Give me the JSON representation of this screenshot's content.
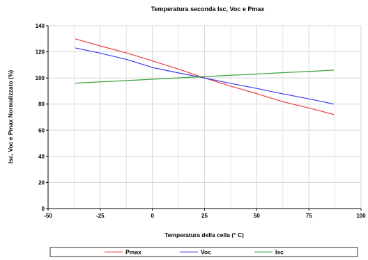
{
  "chart_data": {
    "type": "line",
    "title": "Temperatura seconda Isc, Voc e Pmax",
    "xlabel": "Temperatura della cella (° C)",
    "ylabel": "Isc, Voc e Pmax Normalizzato (%)",
    "xlim": [
      -50,
      100
    ],
    "ylim": [
      0,
      140
    ],
    "xticks": [
      -50,
      -25,
      0,
      25,
      50,
      75,
      100
    ],
    "yticks": [
      0,
      20,
      40,
      60,
      80,
      100,
      120,
      140
    ],
    "grid": true,
    "legend_position": "bottom",
    "series": [
      {
        "name": "Pmax",
        "color": "#ee3b3b",
        "x": [
          -37,
          -25,
          -12,
          0,
          12,
          25,
          37,
          50,
          62,
          75,
          87
        ],
        "y": [
          130,
          124.5,
          119,
          113,
          107,
          100,
          94,
          88,
          82,
          77,
          72
        ]
      },
      {
        "name": "Voc",
        "color": "#3b3bee",
        "x": [
          -37,
          -25,
          -12,
          0,
          12,
          25,
          37,
          50,
          62,
          75,
          87
        ],
        "y": [
          123,
          119,
          114,
          108,
          104,
          100,
          96,
          92,
          88,
          84,
          80
        ]
      },
      {
        "name": "Isc",
        "color": "#3ba03b",
        "x": [
          -37,
          -25,
          -12,
          0,
          12,
          25,
          37,
          50,
          62,
          75,
          87
        ],
        "y": [
          96,
          97,
          98,
          99,
          100,
          101,
          102,
          103,
          104,
          105,
          106
        ]
      }
    ]
  }
}
